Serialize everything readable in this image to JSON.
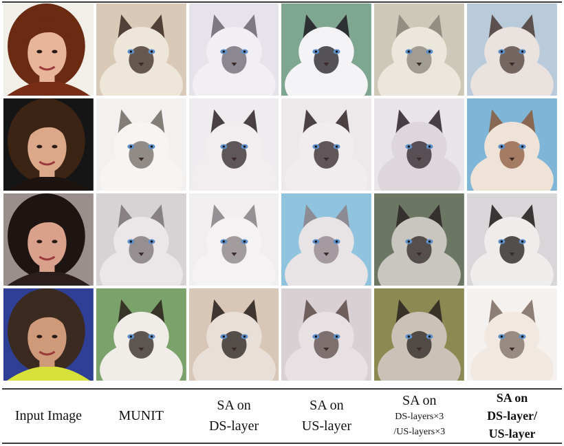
{
  "columns": [
    {
      "lines": [
        "Input  Image"
      ],
      "style": "normal"
    },
    {
      "lines": [
        "MUNIT"
      ],
      "style": "normal"
    },
    {
      "lines": [
        "SA  on",
        "DS-layer"
      ],
      "style": "normal"
    },
    {
      "lines": [
        "SA  on",
        "US-layer"
      ],
      "style": "normal"
    },
    {
      "lines": [
        "SA  on",
        "DS-layers×3",
        "/US-layers×3"
      ],
      "style": "small"
    },
    {
      "lines": [
        "SA on",
        "DS-layer/",
        "US-layer"
      ],
      "style": "bold"
    }
  ],
  "rows": [
    {
      "input": {
        "hair": "#6b2a12",
        "skin": "#e8b49a",
        "bg": "#f2efe8",
        "shirt": "#7a2d16"
      },
      "cats": [
        {
          "bg": "#d9cab8",
          "fur": "#efe6da",
          "mask": "#3a2820"
        },
        {
          "bg": "#e6e4ea",
          "fur": "#f1eff3",
          "mask": "#6a6670"
        },
        {
          "bg": "#7fa690",
          "fur": "#f4f3f6",
          "mask": "#1f1b22"
        },
        {
          "bg": "#cdc8b7",
          "fur": "#ebe7dd",
          "mask": "#8a8478"
        },
        {
          "bg": "#b9cbdb",
          "fur": "#e9e2df",
          "mask": "#4c3c36"
        }
      ]
    },
    {
      "input": {
        "hair": "#3b2414",
        "skin": "#dca88a",
        "bg": "#151515",
        "shirt": "#1d140f"
      },
      "cats": [
        {
          "bg": "#f3f1f0",
          "fur": "#f7f4f2",
          "mask": "#6f6963"
        },
        {
          "bg": "#efecef",
          "fur": "#f2eef0",
          "mask": "#2c2326"
        },
        {
          "bg": "#ede8ea",
          "fur": "#f1eced",
          "mask": "#2f2427"
        },
        {
          "bg": "#e8e4e7",
          "fur": "#ddd6db",
          "mask": "#2b2228"
        },
        {
          "bg": "#7fb6d8",
          "fur": "#efe3d8",
          "mask": "#8a5a3c"
        }
      ]
    },
    {
      "input": {
        "hair": "#1e1513",
        "skin": "#d9a08c",
        "bg": "#9b8f8d",
        "shirt": "#2a1d1c"
      },
      "cats": [
        {
          "bg": "#d7d3d4",
          "fur": "#ebe7e8",
          "mask": "#7a7274"
        },
        {
          "bg": "#f1eeef",
          "fur": "#f5f2f3",
          "mask": "#857f82"
        },
        {
          "bg": "#8fc3de",
          "fur": "#e8e4e6",
          "mask": "#8d8287"
        },
        {
          "bg": "#6b7663",
          "fur": "#c9c5bf",
          "mask": "#2c2625"
        },
        {
          "bg": "#d8d6d8",
          "fur": "#efecec",
          "mask": "#1f1a1a"
        }
      ]
    },
    {
      "input": {
        "hair": "#3a2a20",
        "skin": "#cf9a7a",
        "bg": "#2f3f96",
        "shirt": "#d8e03a"
      },
      "cats": [
        {
          "bg": "#7aa26a",
          "fur": "#f0ede9",
          "mask": "#2b211c"
        },
        {
          "bg": "#d8c7b7",
          "fur": "#e8dfd8",
          "mask": "#241c1a"
        },
        {
          "bg": "#d9d0d4",
          "fur": "#e8e1e4",
          "mask": "#5a4a47"
        },
        {
          "bg": "#8b8a52",
          "fur": "#cbc2b7",
          "mask": "#2a221e"
        },
        {
          "bg": "#f4f1ee",
          "fur": "#f1e9e1",
          "mask": "#7b6b60"
        }
      ]
    }
  ]
}
